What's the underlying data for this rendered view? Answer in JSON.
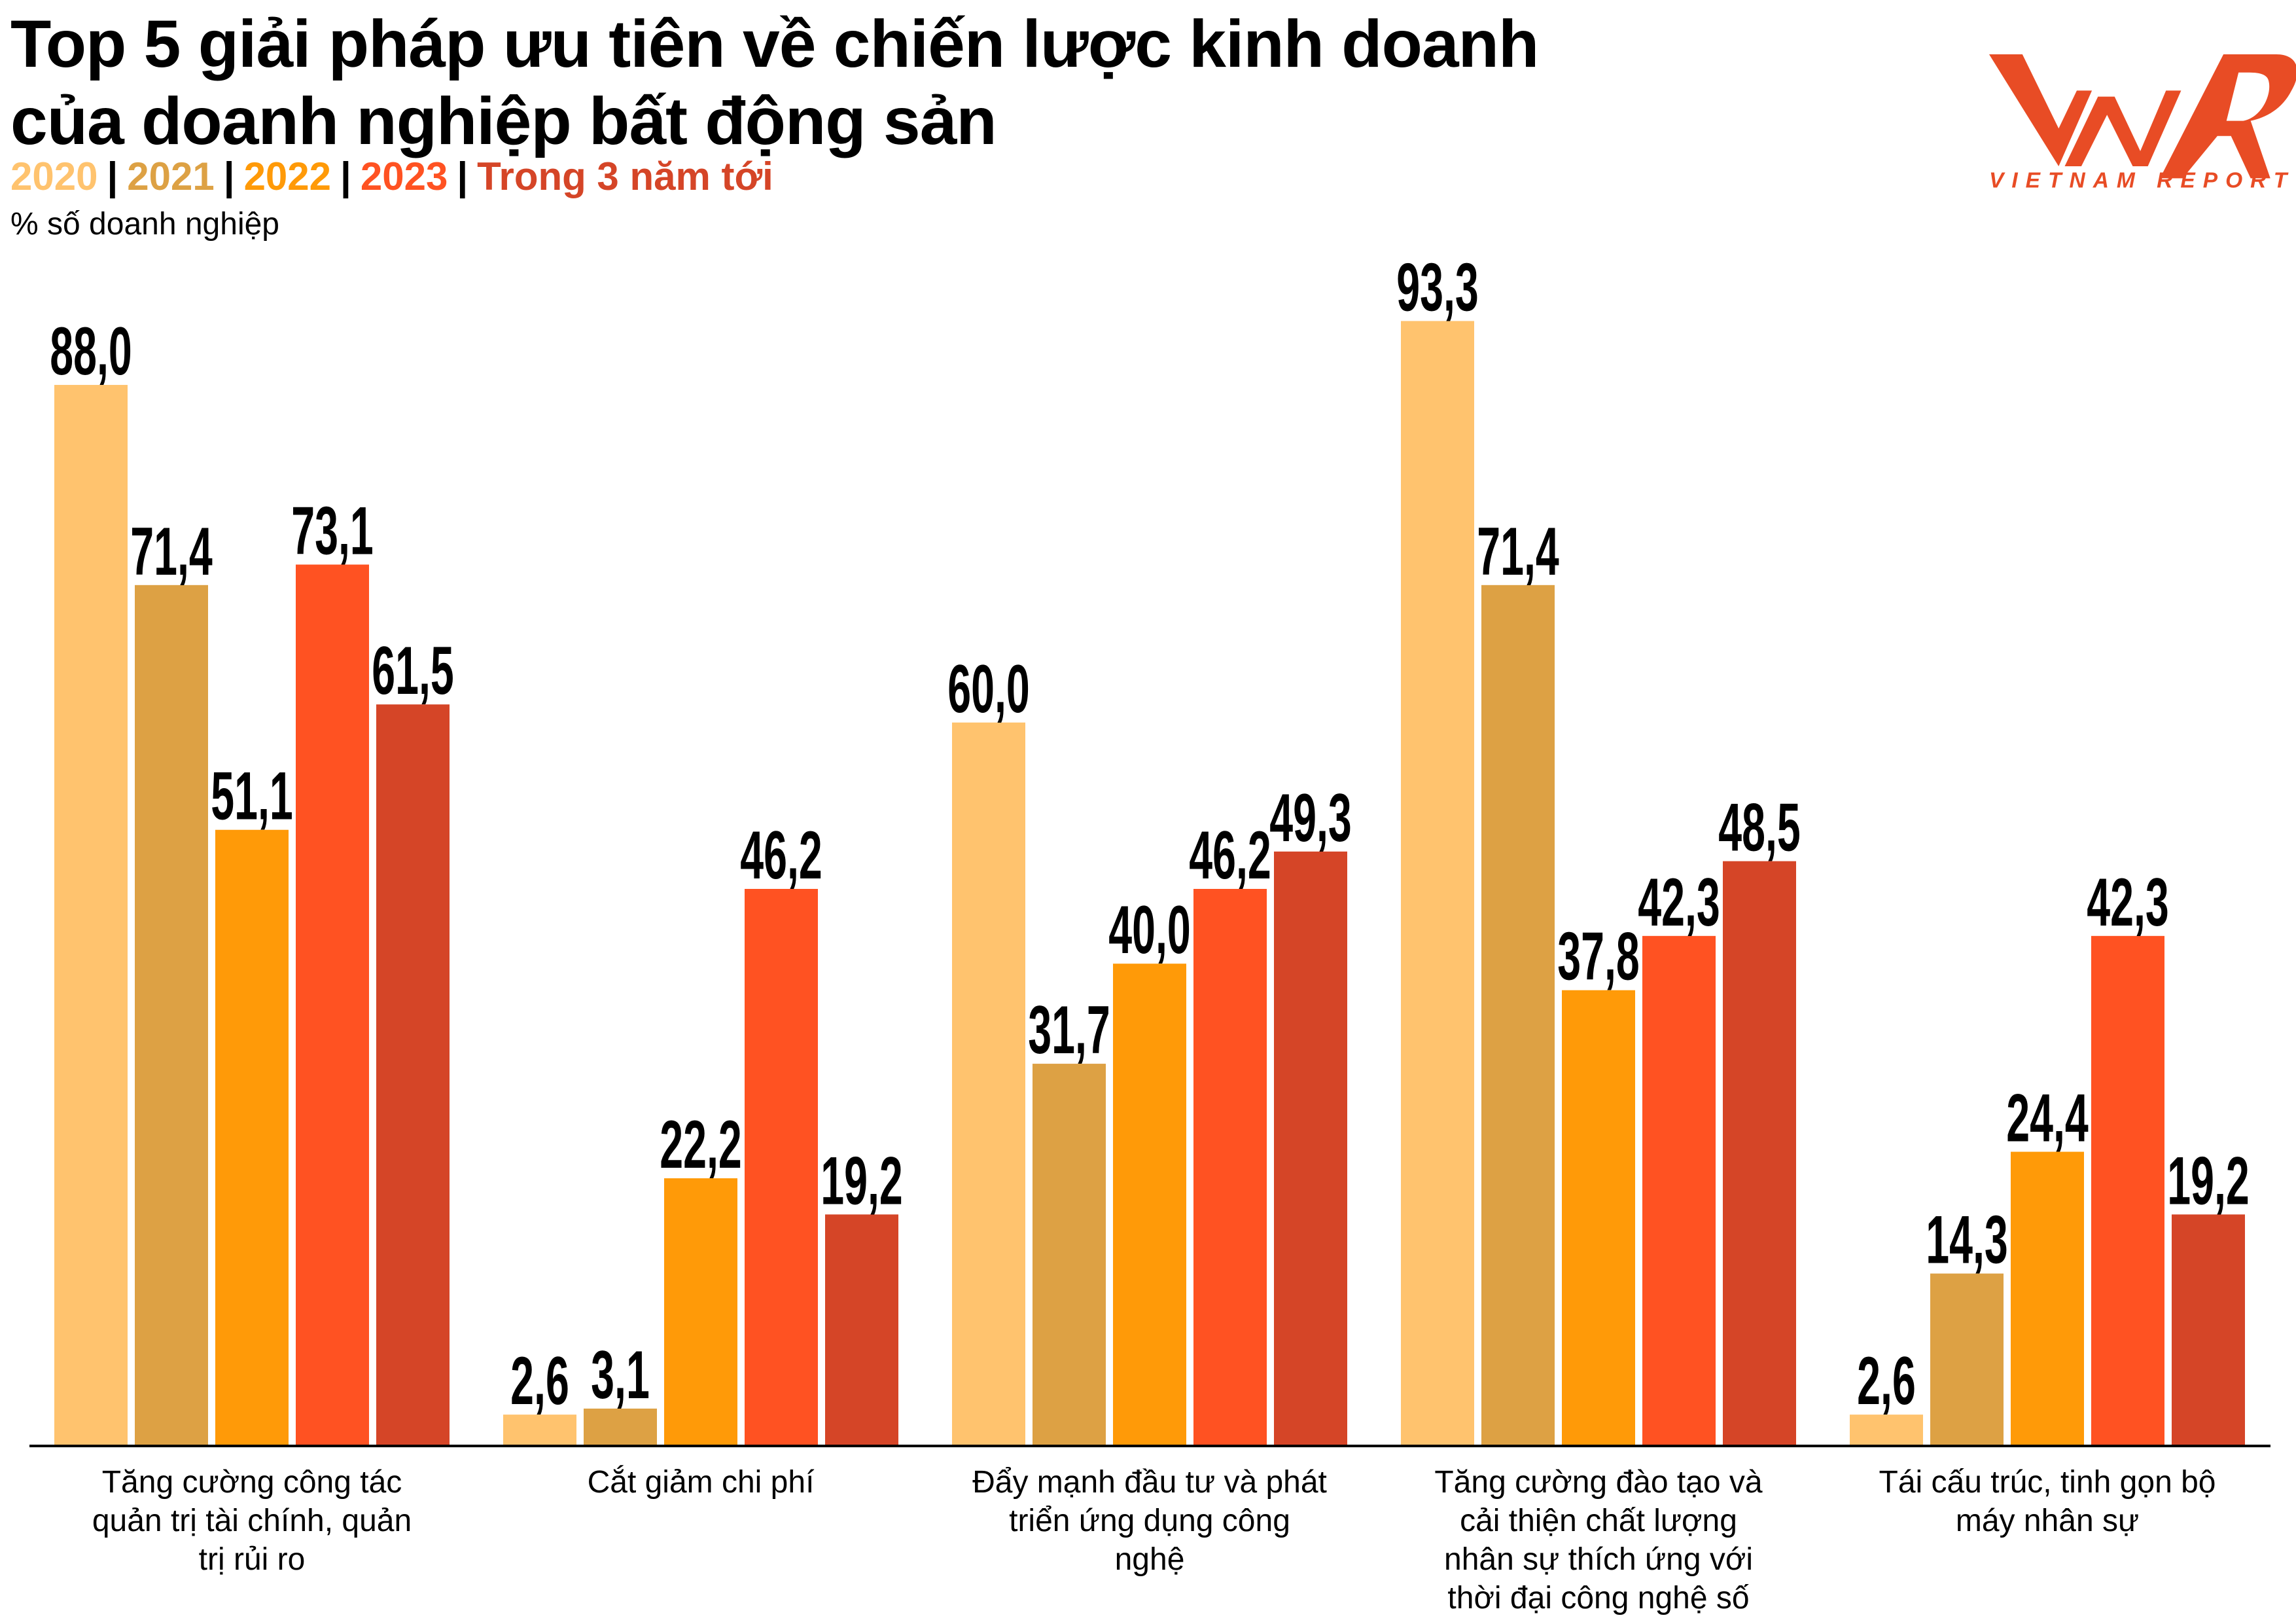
{
  "header": {
    "title_line1": "Top 5 giải pháp ưu tiên về chiến lược kinh doanh",
    "title_line2": "của doanh nghiệp bất động sản",
    "unit": "% số doanh nghiệp"
  },
  "logo": {
    "text": "VIETNAM REPORT",
    "mark": "VNR",
    "color": "#E84C25"
  },
  "chart_data": {
    "type": "bar",
    "title": "Top 5 giải pháp ưu tiên về chiến lược kinh doanh của doanh nghiệp bất động sản",
    "ylabel": "% số doanh nghiệp",
    "ylim": [
      0,
      100
    ],
    "grid": false,
    "legend_placement": "top-left",
    "categories": [
      "Tăng cường công tác quản trị tài chính, quản trị rủi ro",
      "Cắt giảm chi phí",
      "Đẩy mạnh đầu tư và phát triển ứng dụng công nghệ",
      "Tăng cường đào tạo và cải thiện chất lượng nhân sự thích ứng với thời đại công nghệ số",
      "Tái cấu trúc, tinh gọn bộ máy nhân sự"
    ],
    "category_lines": [
      [
        "Tăng cường công tác",
        "quản trị tài chính, quản",
        "trị rủi ro"
      ],
      [
        "Cắt giảm chi phí"
      ],
      [
        "Đẩy mạnh đầu tư và phát",
        "triển ứng dụng công",
        "nghệ"
      ],
      [
        "Tăng cường đào tạo và",
        "cải thiện chất lượng",
        "nhân sự thích ứng với",
        "thời đại công nghệ số"
      ],
      [
        "Tái cấu trúc, tinh gọn bộ",
        "máy nhân sự"
      ]
    ],
    "series": [
      {
        "name": "2020",
        "color": "#FFC36E",
        "values": [
          88.0,
          2.6,
          60.0,
          93.3,
          2.6
        ],
        "labels": [
          "88,0",
          "2,6",
          "60,0",
          "93,3",
          "2,6"
        ]
      },
      {
        "name": "2021",
        "color": "#DDA144",
        "values": [
          71.4,
          3.1,
          31.7,
          71.4,
          14.3
        ],
        "labels": [
          "71,4",
          "3,1",
          "31,7",
          "71,4",
          "14,3"
        ]
      },
      {
        "name": "2022",
        "color": "#FF9A08",
        "values": [
          51.1,
          22.2,
          40.0,
          37.8,
          24.4
        ],
        "labels": [
          "51,1",
          "22,2",
          "40,0",
          "37,8",
          "24,4"
        ]
      },
      {
        "name": "2023",
        "color": "#FF5222",
        "values": [
          73.1,
          46.2,
          46.2,
          42.3,
          42.3
        ],
        "labels": [
          "73,1",
          "46,2",
          "46,2",
          "42,3",
          "42,3"
        ]
      },
      {
        "name": "Trong 3 năm tới",
        "color": "#D54527",
        "values": [
          61.5,
          19.2,
          49.3,
          48.5,
          19.2
        ],
        "labels": [
          "61,5",
          "19,2",
          "49,3",
          "48,5",
          "19,2"
        ]
      }
    ]
  }
}
